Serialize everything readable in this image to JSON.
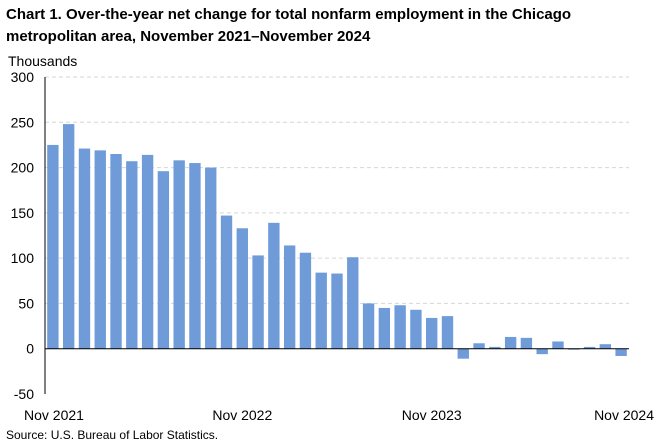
{
  "title": "Chart 1. Over-the-year net change for total nonfarm employment in the Chicago metropolitan area, November 2021–November 2024",
  "source": "Source: U.S. Bureau of Labor Statistics.",
  "chart_data": {
    "type": "bar",
    "title": "Chart 1. Over-the-year net change for total nonfarm employment in the Chicago metropolitan area, November 2021–November 2024",
    "ylabel": "Thousands",
    "xlabel": "",
    "ylim": [
      -50,
      300
    ],
    "yticks": [
      -50,
      0,
      50,
      100,
      150,
      200,
      250,
      300
    ],
    "grid": true,
    "legend": "none",
    "bar_color": "#6f9bd9",
    "categories": [
      "Nov 2021",
      "Dec 2021",
      "Jan 2022",
      "Feb 2022",
      "Mar 2022",
      "Apr 2022",
      "May 2022",
      "Jun 2022",
      "Jul 2022",
      "Aug 2022",
      "Sep 2022",
      "Oct 2022",
      "Nov 2022",
      "Dec 2022",
      "Jan 2023",
      "Feb 2023",
      "Mar 2023",
      "Apr 2023",
      "May 2023",
      "Jun 2023",
      "Jul 2023",
      "Aug 2023",
      "Sep 2023",
      "Oct 2023",
      "Nov 2023",
      "Dec 2023",
      "Jan 2024",
      "Feb 2024",
      "Mar 2024",
      "Apr 2024",
      "May 2024",
      "Jun 2024",
      "Jul 2024",
      "Aug 2024",
      "Sep 2024",
      "Oct 2024",
      "Nov 2024"
    ],
    "xtick_labels": [
      "Nov 2021",
      "Nov 2022",
      "Nov 2023",
      "Nov 2024"
    ],
    "xtick_indices": [
      0,
      12,
      24,
      36
    ],
    "values": [
      225,
      248,
      221,
      219,
      215,
      207,
      214,
      196,
      208,
      205,
      200,
      147,
      133,
      103,
      139,
      114,
      106,
      84,
      83,
      101,
      50,
      45,
      48,
      43,
      34,
      36,
      -11,
      6,
      2,
      13,
      12,
      -6,
      8,
      -1,
      2,
      5,
      -8
    ]
  }
}
